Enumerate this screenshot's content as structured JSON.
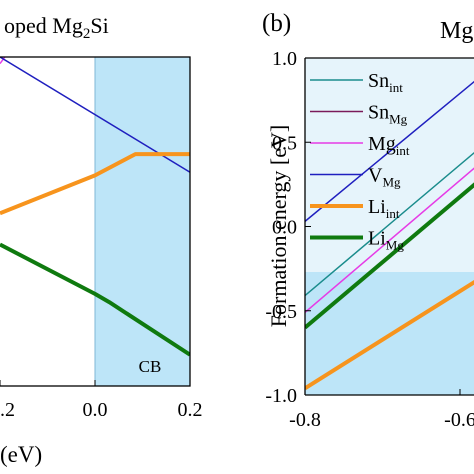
{
  "chart_data": [
    {
      "panel": "left",
      "type": "line",
      "title_fragment": "oped Mg",
      "title_sub": "2",
      "title_tail": "Si",
      "xlabel": "(eV)",
      "xlim": [
        -0.2,
        0.2
      ],
      "x_ticks": [
        {
          "value": -0.2,
          "label": ".2"
        },
        {
          "value": 0.0,
          "label": "0.0"
        },
        {
          "value": 0.2,
          "label": "0.2"
        }
      ],
      "ylim": [
        -1.0,
        1.0
      ],
      "shaded_region": {
        "x_from": 0.0,
        "x_to": 0.2,
        "color": "#bde5f8",
        "label": "CB"
      },
      "grid": false,
      "series": [
        {
          "color": "#e63be6",
          "width": 1.5,
          "points": [
            [
              -0.2,
              0.96
            ],
            [
              -0.19,
              1.0
            ]
          ]
        },
        {
          "color": "#1f1fbf",
          "width": 1.5,
          "points": [
            [
              -0.2,
              1.0
            ],
            [
              0.2,
              0.3
            ]
          ]
        },
        {
          "color": "#f7941d",
          "width": 4,
          "points": [
            [
              -0.2,
              0.05
            ],
            [
              0.0,
              0.28
            ],
            [
              0.085,
              0.41
            ],
            [
              0.2,
              0.41
            ]
          ]
        },
        {
          "color": "#0f7a0f",
          "width": 4,
          "points": [
            [
              -0.2,
              -0.14
            ],
            [
              0.0,
              -0.44
            ],
            [
              0.03,
              -0.49
            ],
            [
              0.2,
              -0.81
            ]
          ]
        }
      ]
    },
    {
      "panel": "right",
      "type": "line",
      "panel_label": "(b)",
      "title_fragment": "Mg",
      "ylabel": "Formation energy [eV]",
      "xlim": [
        -0.8,
        -0.55
      ],
      "x_ticks": [
        {
          "value": -0.8,
          "label": "-0.8"
        },
        {
          "value": -0.6,
          "label": "-0.6"
        }
      ],
      "ylim": [
        -1.0,
        1.0
      ],
      "y_ticks": [
        {
          "value": 1.0,
          "label": "1.0"
        },
        {
          "value": 0.5,
          "label": "0.5"
        },
        {
          "value": 0.0,
          "label": "0.0"
        },
        {
          "value": -0.5,
          "label": "-0.5"
        },
        {
          "value": -1.0,
          "label": "-1.0"
        }
      ],
      "shaded_region": {
        "y_from": -1.0,
        "y_to": -0.27,
        "color": "#bde5f8"
      },
      "faint_region": {
        "y_from": -0.27,
        "y_to": 1.0,
        "color": "#e6f4fb"
      },
      "grid": false,
      "legend_position": "top-left",
      "legend": [
        {
          "main": "Sn",
          "sub": "int",
          "color": "#1a8c8c",
          "width": 1.5
        },
        {
          "main": "Sn",
          "sub": "Mg",
          "color": "#7a1a5a",
          "width": 1.5
        },
        {
          "main": "Mg",
          "sub": "int",
          "color": "#e63be6",
          "width": 1.5
        },
        {
          "main": "V",
          "sub": "Mg",
          "color": "#1f1fbf",
          "width": 1.5
        },
        {
          "main": "Li",
          "sub": "int",
          "color": "#f7941d",
          "width": 4
        },
        {
          "main": "Li",
          "sub": "Mg",
          "color": "#0f7a0f",
          "width": 4
        }
      ],
      "series": [
        {
          "color": "#1a8c8c",
          "width": 1.5,
          "points": [
            [
              -0.8,
              -0.41
            ],
            [
              -0.55,
              0.56
            ]
          ]
        },
        {
          "color": "#e63be6",
          "width": 1.5,
          "points": [
            [
              -0.8,
              -0.51
            ],
            [
              -0.55,
              0.47
            ]
          ]
        },
        {
          "color": "#1f1fbf",
          "width": 1.5,
          "points": [
            [
              -0.8,
              0.03
            ],
            [
              -0.55,
              0.98
            ]
          ]
        },
        {
          "color": "#0f7a0f",
          "width": 4,
          "points": [
            [
              -0.8,
              -0.6
            ],
            [
              -0.55,
              0.37
            ]
          ]
        },
        {
          "color": "#f7941d",
          "width": 4,
          "points": [
            [
              -0.8,
              -0.96
            ],
            [
              -0.55,
              -0.24
            ]
          ]
        }
      ]
    }
  ]
}
